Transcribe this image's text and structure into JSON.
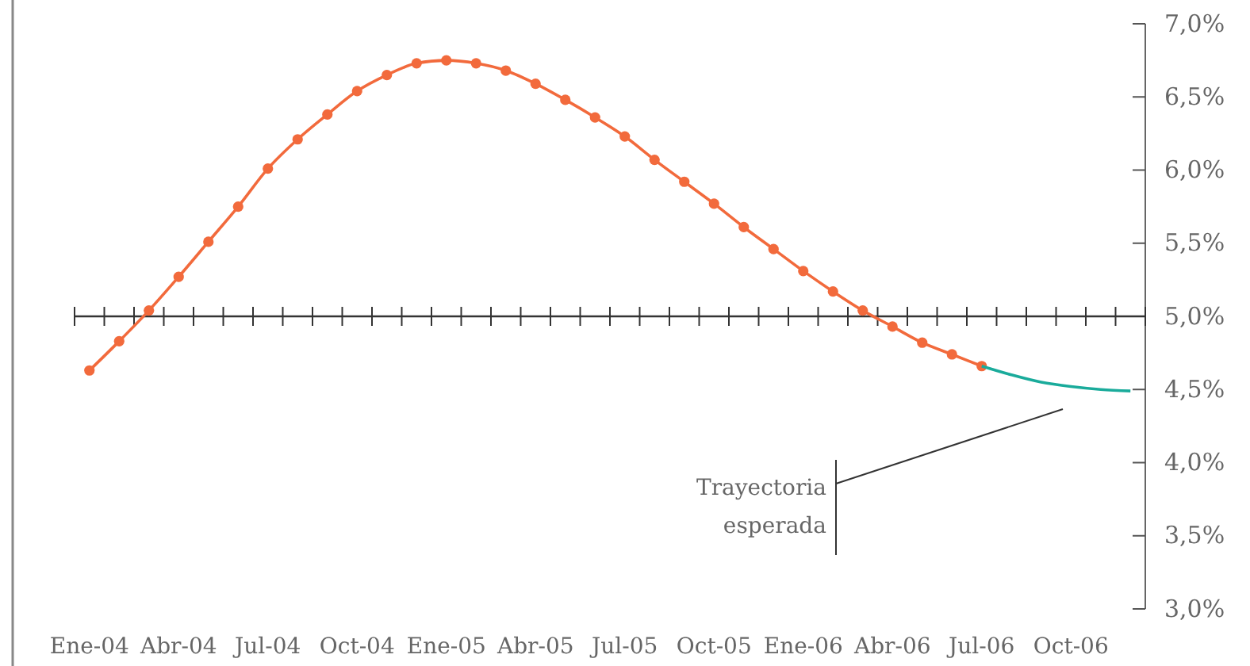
{
  "chart_data": {
    "type": "line",
    "categories": [
      "Ene-04",
      null,
      null,
      "Abr-04",
      null,
      null,
      "Jul-04",
      null,
      null,
      "Oct-04",
      null,
      null,
      "Ene-05",
      null,
      null,
      "Abr-05",
      null,
      null,
      "Jul-05",
      null,
      null,
      "Oct-05",
      null,
      null,
      "Ene-06",
      null,
      null,
      "Abr-06",
      null,
      null,
      "Jul-06",
      null,
      null,
      "Oct-06",
      null,
      null
    ],
    "series": [
      {
        "color": "#f26a3c",
        "marker": "circle",
        "values": [
          4.63,
          4.83,
          5.04,
          5.27,
          5.51,
          5.75,
          6.01,
          6.21,
          6.38,
          6.54,
          6.65,
          6.73,
          6.75,
          6.73,
          6.68,
          6.59,
          6.48,
          6.36,
          6.23,
          6.07,
          5.92,
          5.77,
          5.61,
          5.46,
          5.31,
          5.17,
          5.04,
          4.93,
          4.82,
          4.74,
          4.66,
          null,
          null,
          null,
          null,
          null
        ]
      },
      {
        "color": "#1aab9b",
        "marker": "none",
        "values": [
          null,
          null,
          null,
          null,
          null,
          null,
          null,
          null,
          null,
          null,
          null,
          null,
          null,
          null,
          null,
          null,
          null,
          null,
          null,
          null,
          null,
          null,
          null,
          null,
          null,
          null,
          null,
          null,
          null,
          null,
          4.66,
          4.6,
          4.55,
          4.52,
          4.5,
          4.49
        ]
      }
    ],
    "ylim": [
      3,
      7
    ],
    "yticks": [
      {
        "value": 3,
        "label": "3,0%"
      },
      {
        "value": 3.5,
        "label": "3,5%"
      },
      {
        "value": 4,
        "label": "4,0%"
      },
      {
        "value": 4.5,
        "label": "4,5%"
      },
      {
        "value": 5,
        "label": "5,0%"
      },
      {
        "value": 5.5,
        "label": "5,5%"
      },
      {
        "value": 6,
        "label": "6,0%"
      },
      {
        "value": 6.5,
        "label": "6,5%"
      },
      {
        "value": 7,
        "label": "7,0%"
      }
    ],
    "ref_lines": [
      {
        "axis": "y",
        "value": 5,
        "color": "#333333"
      }
    ],
    "annotations": [
      "Trayectoria esperada"
    ],
    "grid": false
  }
}
